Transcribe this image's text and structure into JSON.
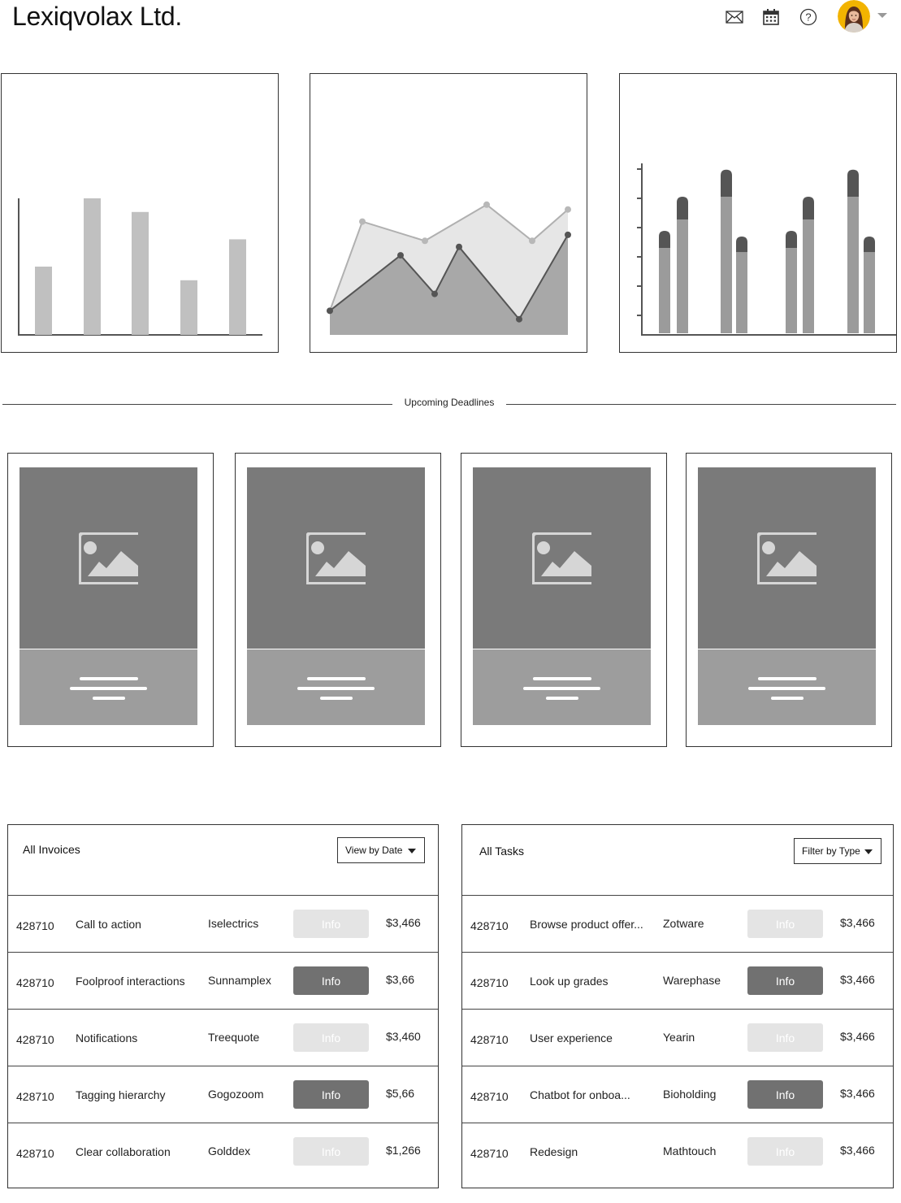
{
  "header": {
    "company": "Lexiqvolax Ltd.",
    "icons": [
      "envelope-icon",
      "calendar-icon",
      "help-icon",
      "avatar",
      "chevron-down-icon"
    ]
  },
  "charts": [
    {
      "type": "bar",
      "values": [
        5,
        10,
        9,
        4,
        7
      ]
    },
    {
      "type": "area",
      "series": [
        {
          "values": [
            2,
            9.4,
            7.8,
            10.8,
            7.8,
            10.4
          ]
        },
        {
          "values": [
            2,
            6.6,
            3.4,
            7.3,
            1.3,
            8.3
          ]
        }
      ]
    },
    {
      "type": "bar",
      "stacked": true,
      "series": [
        {
          "values": [
            6,
            8,
            9.6,
            5.7,
            6,
            8,
            9.6,
            5.7
          ]
        },
        {
          "values": [
            1.2,
            1.6,
            1.9,
            1.1,
            1.2,
            1.6,
            1.9,
            1.1
          ]
        }
      ]
    }
  ],
  "divider": {
    "label": "Upcoming Deadlines"
  },
  "cards": [
    {
      "icon": "image-placeholder-icon"
    },
    {
      "icon": "image-placeholder-icon"
    },
    {
      "icon": "image-placeholder-icon"
    },
    {
      "icon": "image-placeholder-icon"
    }
  ],
  "invoices": {
    "title": "All Invoices",
    "dropdown": "View by Date",
    "rows": [
      {
        "id": "428710",
        "name": "Call to action",
        "company": "Iselectrics",
        "button": "Info",
        "style": "light",
        "amount": "$3,466"
      },
      {
        "id": "428710",
        "name": "Foolproof interactions",
        "company": "Sunnamplex",
        "button": "Info",
        "style": "dark",
        "amount": "$3,66"
      },
      {
        "id": "428710",
        "name": "Notifications",
        "company": "Treequote",
        "button": "Info",
        "style": "light",
        "amount": "$3,460"
      },
      {
        "id": "428710",
        "name": "Tagging hierarchy",
        "company": "Gogozoom",
        "button": "Info",
        "style": "dark",
        "amount": "$5,66"
      },
      {
        "id": "428710",
        "name": "Clear collaboration",
        "company": "Golddex",
        "button": "Info",
        "style": "light",
        "amount": "$1,266"
      }
    ]
  },
  "tasks": {
    "title": "All Tasks",
    "dropdown": "Filter by Type",
    "rows": [
      {
        "id": "428710",
        "name": "Browse product offer...",
        "company": "Zotware",
        "button": "Info",
        "style": "light",
        "amount": "$3,466"
      },
      {
        "id": "428710",
        "name": "Look up grades",
        "company": "Warephase",
        "button": "Info",
        "style": "dark",
        "amount": "$3,466"
      },
      {
        "id": "428710",
        "name": "User experience",
        "company": "Yearin",
        "button": "Info",
        "style": "light",
        "amount": "$3,466"
      },
      {
        "id": "428710",
        "name": "Chatbot for onboa...",
        "company": "Bioholding",
        "button": "Info",
        "style": "dark",
        "amount": "$3,466"
      },
      {
        "id": "428710",
        "name": "Redesign",
        "company": "Mathtouch",
        "button": "Info",
        "style": "light",
        "amount": "$3,466"
      }
    ]
  },
  "colors": {
    "bar_light": "#c0c0c0",
    "area_back": "#e6e6e6",
    "area_front": "#a8a8a8",
    "stack_low": "#9b9b9b",
    "stack_high": "#555555",
    "avatar_ring": "#f2b300",
    "info_light": "#e4e4e4",
    "info_dark": "#717171"
  }
}
